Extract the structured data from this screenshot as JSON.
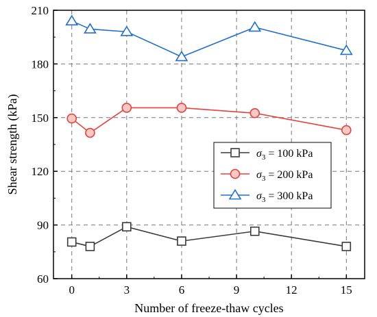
{
  "chart_data": {
    "type": "line",
    "xlabel": "Number of freeze-thaw cycles",
    "ylabel": "Shear strength (kPa)",
    "xlim": [
      -1,
      16
    ],
    "ylim": [
      60,
      210
    ],
    "xticks": [
      0,
      3,
      6,
      9,
      12,
      15
    ],
    "yticks": [
      60,
      90,
      120,
      150,
      180,
      210
    ],
    "grid": true,
    "legend_position": "center-right",
    "x": [
      0,
      1,
      3,
      6,
      10,
      15
    ],
    "series": [
      {
        "name_symbol": "σ",
        "name_sub": "3",
        "name_rest": " = 100 kPa",
        "marker": "square",
        "color": "#3a3a3a",
        "values": [
          80.5,
          78.0,
          89.0,
          81.0,
          86.5,
          78.0
        ]
      },
      {
        "name_symbol": "σ",
        "name_sub": "3",
        "name_rest": " = 200 kPa",
        "marker": "circle",
        "color": "#e8403a",
        "values": [
          149.5,
          141.5,
          155.5,
          155.5,
          152.5,
          143.0
        ]
      },
      {
        "name_symbol": "σ",
        "name_sub": "3",
        "name_rest": " = 300 kPa",
        "marker": "triangle",
        "color": "#1f6fd0",
        "values": [
          204.0,
          199.5,
          198.0,
          184.0,
          200.5,
          187.5
        ]
      }
    ]
  }
}
